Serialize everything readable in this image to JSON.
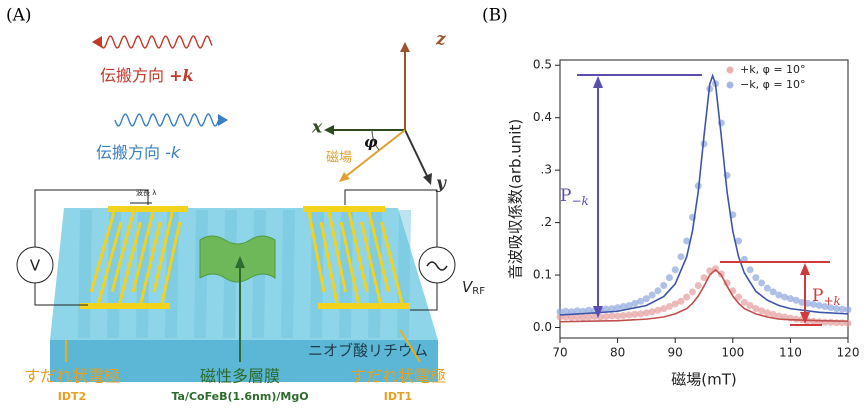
{
  "diagram": {
    "panel_label": "(A)",
    "wave_plus": {
      "text": "伝搬方向 ",
      "k": "+k"
    },
    "wave_minus": {
      "text": "伝搬方向 ",
      "k": "-k"
    },
    "axis_z": "z",
    "axis_x": "x",
    "axis_y": "y",
    "angle": "φ",
    "field": "磁場",
    "wavelength": "波長 λ",
    "voltmeter": "V",
    "source": {
      "main": "V",
      "sub": "RF"
    },
    "substrate": "ニオブ酸リチウム",
    "film": "磁性多層膜",
    "film_stack": "Ta/CoFeB(1.6nm)/MgO",
    "idt_left": {
      "label": "すだれ状電極",
      "name": "IDT2"
    },
    "idt_right": {
      "label": "すだれ状電極",
      "name": "IDT1"
    }
  },
  "chart_data": {
    "type": "scatter",
    "panel_label": "(B)",
    "x_label": "磁場(mT)",
    "y_label": "音波吸収係数(arb.unit)",
    "xlim": [
      70,
      120
    ],
    "ylim": [
      -0.02,
      0.51
    ],
    "xticks": [
      70,
      80,
      90,
      100,
      110,
      120
    ],
    "yticks": [
      {
        "value": 0,
        "label": "0.0"
      },
      {
        "value": 0.1,
        "label": "0.1"
      },
      {
        "value": 0.2,
        "label": ".2"
      },
      {
        "value": 0.3,
        "label": ".3"
      },
      {
        "value": 0.4,
        "label": "0.4"
      },
      {
        "value": 0.5,
        "label": "0.5"
      }
    ],
    "legend": "upper right",
    "x": [
      70,
      71,
      72,
      73,
      74,
      75,
      76,
      77,
      78,
      79,
      80,
      81,
      82,
      83,
      84,
      85,
      86,
      87,
      88,
      89,
      90,
      91,
      92,
      93,
      94,
      95,
      96,
      97,
      98,
      99,
      100,
      101,
      102,
      103,
      104,
      105,
      106,
      107,
      108,
      109,
      110,
      111,
      112,
      113,
      114,
      115,
      116,
      117,
      118,
      119,
      120
    ],
    "series": [
      {
        "name": "+k, φ = 10°",
        "color": "#e49c9c",
        "values": [
          0.02,
          0.02,
          0.019,
          0.02,
          0.019,
          0.02,
          0.021,
          0.02,
          0.021,
          0.022,
          0.022,
          0.023,
          0.024,
          0.025,
          0.026,
          0.028,
          0.03,
          0.033,
          0.036,
          0.04,
          0.045,
          0.05,
          0.058,
          0.068,
          0.08,
          0.095,
          0.108,
          0.112,
          0.102,
          0.085,
          0.07,
          0.058,
          0.048,
          0.042,
          0.036,
          0.032,
          0.028,
          0.025,
          0.022,
          0.02,
          0.018,
          0.016,
          0.015,
          0.013,
          0.012,
          0.011,
          0.01,
          0.01,
          0.009,
          0.009,
          0.008
        ]
      },
      {
        "name": "−k, φ = 10°",
        "color": "#8ea6de",
        "values": [
          0.03,
          0.031,
          0.03,
          0.032,
          0.031,
          0.033,
          0.032,
          0.034,
          0.035,
          0.036,
          0.038,
          0.04,
          0.042,
          0.046,
          0.05,
          0.055,
          0.062,
          0.07,
          0.08,
          0.095,
          0.11,
          0.135,
          0.165,
          0.21,
          0.27,
          0.35,
          0.455,
          0.465,
          0.39,
          0.29,
          0.215,
          0.165,
          0.13,
          0.11,
          0.095,
          0.085,
          0.075,
          0.068,
          0.062,
          0.058,
          0.055,
          0.052,
          0.048,
          0.046,
          0.044,
          0.042,
          0.04,
          0.038,
          0.036,
          0.035,
          0.034
        ]
      }
    ],
    "fits": [
      {
        "color": "#c0504d",
        "x": [
          70,
          75,
          80,
          85,
          88,
          90,
          92,
          93,
          94,
          95,
          96,
          97,
          98,
          99,
          100,
          101,
          102,
          104,
          106,
          108,
          110,
          115,
          120
        ],
        "values": [
          0.011,
          0.012,
          0.013,
          0.016,
          0.02,
          0.026,
          0.036,
          0.046,
          0.06,
          0.079,
          0.1,
          0.11,
          0.1,
          0.079,
          0.06,
          0.046,
          0.036,
          0.026,
          0.02,
          0.016,
          0.015,
          0.013,
          0.012
        ]
      },
      {
        "color": "#3d55a8",
        "x": [
          70,
          75,
          80,
          85,
          88,
          90,
          92,
          93,
          94,
          95,
          96,
          96.5,
          97,
          98,
          99,
          100,
          101,
          102,
          104,
          106,
          108,
          110,
          115,
          120
        ],
        "values": [
          0.024,
          0.027,
          0.031,
          0.042,
          0.059,
          0.083,
          0.135,
          0.184,
          0.259,
          0.365,
          0.464,
          0.48,
          0.464,
          0.365,
          0.259,
          0.184,
          0.135,
          0.104,
          0.069,
          0.052,
          0.042,
          0.036,
          0.029,
          0.026
        ]
      }
    ],
    "annotations": [
      {
        "main": "P",
        "sub": "−k"
      },
      {
        "main": "P",
        "sub": "+k"
      }
    ]
  }
}
